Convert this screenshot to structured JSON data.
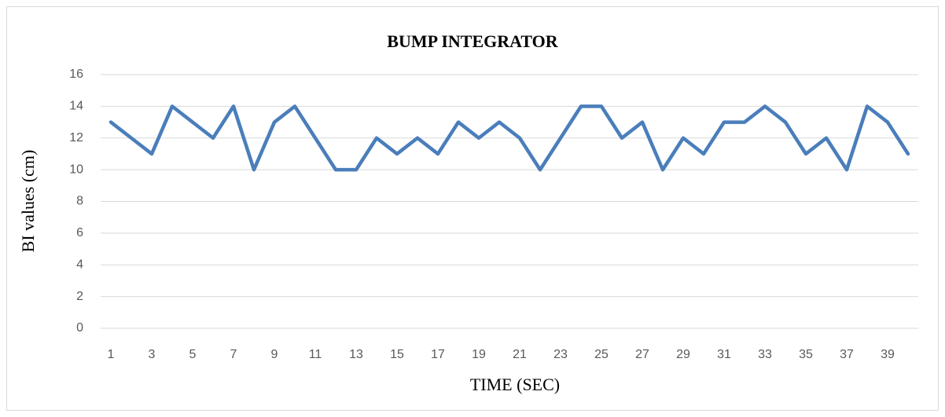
{
  "chart_data": {
    "type": "line",
    "title": "BUMP INTEGRATOR",
    "x_label": "TIME (SEC)",
    "y_label": "BI values (cm)",
    "categories": [
      1,
      null,
      3,
      null,
      5,
      null,
      7,
      null,
      9,
      null,
      11,
      null,
      13,
      null,
      15,
      null,
      17,
      null,
      19,
      null,
      21,
      null,
      23,
      null,
      25,
      null,
      27,
      null,
      29,
      null,
      31,
      null,
      33,
      null,
      35,
      null,
      37,
      null,
      39,
      null
    ],
    "series": [
      {
        "name": "BI",
        "color": "#4a7ebb",
        "values": [
          13,
          12,
          11,
          14,
          13,
          12,
          14,
          10,
          13,
          14,
          12,
          10,
          10,
          12,
          11,
          12,
          11,
          13,
          12,
          13,
          12,
          10,
          12,
          14,
          14,
          12,
          13,
          10,
          12,
          11,
          13,
          13,
          14,
          13,
          11,
          12,
          10,
          14,
          13,
          11
        ]
      }
    ],
    "ylim": [
      0,
      16
    ],
    "yticks": [
      0,
      2,
      4,
      6,
      8,
      10,
      12,
      14,
      16
    ],
    "grid": true
  }
}
